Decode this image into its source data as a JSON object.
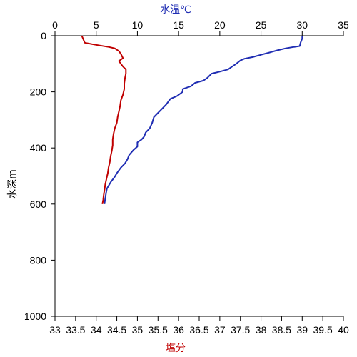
{
  "chart_data": {
    "type": "line",
    "title": "",
    "top_axis": {
      "label": "水温℃",
      "range": [
        0,
        35
      ],
      "ticks": [
        "0",
        "5",
        "10",
        "15",
        "20",
        "25",
        "30",
        "35"
      ],
      "color": "#1f2db3"
    },
    "bottom_axis": {
      "label": "塩分",
      "range": [
        33,
        40
      ],
      "ticks": [
        "33",
        "33.5",
        "34",
        "34.5",
        "35",
        "35.5",
        "36",
        "36.5",
        "37",
        "37.5",
        "38",
        "38.5",
        "39",
        "39.5",
        "40"
      ],
      "color": "#c00000"
    },
    "y_axis": {
      "label": "水深m",
      "range": [
        0,
        1000
      ],
      "inverted": true,
      "ticks": [
        "0",
        "200",
        "400",
        "600",
        "800",
        "1000"
      ]
    },
    "grid": false,
    "series": [
      {
        "name": "",
        "axis": "top",
        "color": "#1f2db3",
        "points": [
          [
            30.0,
            0
          ],
          [
            30.0,
            10
          ],
          [
            29.8,
            25
          ],
          [
            29.7,
            37
          ],
          [
            29.0,
            40
          ],
          [
            28.0,
            45
          ],
          [
            27.0,
            52
          ],
          [
            26.0,
            60
          ],
          [
            25.0,
            68
          ],
          [
            24.0,
            76
          ],
          [
            23.0,
            82
          ],
          [
            22.5,
            88
          ],
          [
            22.0,
            100
          ],
          [
            21.5,
            110
          ],
          [
            21.0,
            120
          ],
          [
            20.0,
            128
          ],
          [
            19.0,
            135
          ],
          [
            18.5,
            150
          ],
          [
            18.0,
            160
          ],
          [
            17.0,
            168
          ],
          [
            16.5,
            180
          ],
          [
            15.5,
            190
          ],
          [
            15.5,
            200
          ],
          [
            14.8,
            215
          ],
          [
            14.0,
            225
          ],
          [
            13.5,
            245
          ],
          [
            13.0,
            260
          ],
          [
            12.5,
            275
          ],
          [
            12.0,
            290
          ],
          [
            11.8,
            310
          ],
          [
            11.5,
            330
          ],
          [
            11.0,
            345
          ],
          [
            10.8,
            360
          ],
          [
            10.5,
            370
          ],
          [
            10.0,
            380
          ],
          [
            10.0,
            395
          ],
          [
            9.5,
            408
          ],
          [
            9.0,
            425
          ],
          [
            8.8,
            440
          ],
          [
            8.5,
            455
          ],
          [
            8.0,
            470
          ],
          [
            7.5,
            490
          ],
          [
            7.2,
            505
          ],
          [
            6.8,
            520
          ],
          [
            6.5,
            535
          ],
          [
            6.3,
            545
          ],
          [
            6.2,
            560
          ],
          [
            6.1,
            580
          ],
          [
            6.0,
            600
          ]
        ]
      },
      {
        "name": "",
        "axis": "bottom",
        "color": "#c00000",
        "points": [
          [
            33.65,
            0
          ],
          [
            33.68,
            10
          ],
          [
            33.72,
            25
          ],
          [
            33.9,
            30
          ],
          [
            34.1,
            35
          ],
          [
            34.3,
            40
          ],
          [
            34.45,
            45
          ],
          [
            34.55,
            55
          ],
          [
            34.6,
            65
          ],
          [
            34.65,
            80
          ],
          [
            34.55,
            90
          ],
          [
            34.6,
            100
          ],
          [
            34.65,
            110
          ],
          [
            34.72,
            120
          ],
          [
            34.72,
            135
          ],
          [
            34.7,
            150
          ],
          [
            34.68,
            170
          ],
          [
            34.68,
            190
          ],
          [
            34.65,
            210
          ],
          [
            34.6,
            230
          ],
          [
            34.58,
            250
          ],
          [
            34.55,
            270
          ],
          [
            34.52,
            290
          ],
          [
            34.5,
            310
          ],
          [
            34.45,
            330
          ],
          [
            34.42,
            350
          ],
          [
            34.4,
            370
          ],
          [
            34.4,
            390
          ],
          [
            34.38,
            410
          ],
          [
            34.35,
            430
          ],
          [
            34.33,
            450
          ],
          [
            34.3,
            470
          ],
          [
            34.28,
            490
          ],
          [
            34.25,
            510
          ],
          [
            34.22,
            530
          ],
          [
            34.2,
            550
          ],
          [
            34.18,
            570
          ],
          [
            34.17,
            585
          ],
          [
            34.15,
            600
          ]
        ]
      }
    ]
  }
}
